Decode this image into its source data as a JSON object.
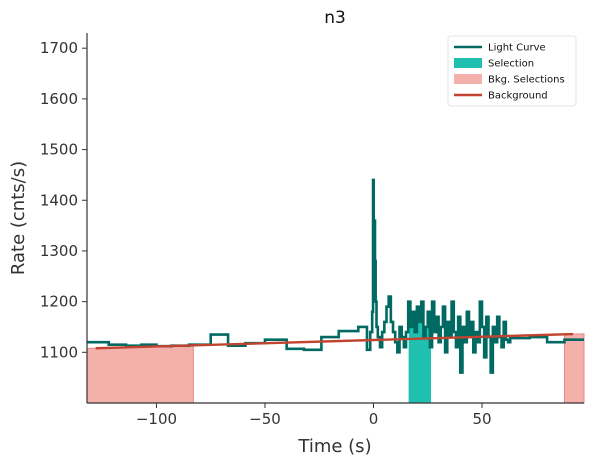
{
  "chart_data": {
    "type": "line",
    "title": "n3",
    "xlabel": "Time (s)",
    "ylabel": "Rate (cnts/s)",
    "xlim": [
      -132,
      97
    ],
    "ylim": [
      1000,
      1730
    ],
    "xticks": [
      -100,
      -50,
      0,
      50
    ],
    "xtick_labels": [
      "−100",
      "−50",
      "0",
      "50"
    ],
    "yticks": [
      1100,
      1200,
      1300,
      1400,
      1500,
      1600,
      1700
    ],
    "ytick_labels": [
      "1100",
      "1200",
      "1300",
      "1400",
      "1500",
      "1600",
      "1700"
    ],
    "grid": false,
    "legend_position": "top-right",
    "legend": [
      {
        "label": "Light Curve",
        "kind": "line",
        "color": "#006a62"
      },
      {
        "label": "Selection",
        "kind": "patch",
        "color": "#20c0b0"
      },
      {
        "label": "Bkg. Selections",
        "kind": "patch",
        "color": "#f4b1ab"
      },
      {
        "label": "Background",
        "kind": "line",
        "color": "#c2432f"
      }
    ],
    "light_curve": {
      "name": "Light Curve",
      "color": "#006a62",
      "x": [
        -132,
        -122,
        -114,
        -107,
        -100,
        -93,
        -85,
        -75,
        -67,
        -59,
        -50,
        -40,
        -32,
        -24,
        -16,
        -7,
        -3,
        -1.5,
        -0.6,
        -0.2,
        0.1,
        0.4,
        0.7,
        1.0,
        1.4,
        2,
        3,
        4,
        5,
        6,
        7,
        8,
        9,
        10,
        11,
        12,
        13,
        14,
        15,
        16,
        17,
        18,
        19,
        20,
        21,
        22,
        23,
        24,
        25,
        26,
        27,
        28,
        29,
        30,
        31,
        32,
        33,
        34,
        35,
        36,
        37,
        38,
        39,
        40,
        41,
        42,
        43,
        44,
        45,
        46,
        47,
        48,
        49,
        50,
        51,
        52,
        53,
        54,
        55,
        56,
        57,
        58,
        59,
        60,
        61,
        62,
        63,
        72,
        80,
        88,
        97
      ],
      "y": [
        1120,
        1115,
        1113,
        1115,
        1112,
        1113,
        1115,
        1135,
        1113,
        1118,
        1125,
        1107,
        1105,
        1130,
        1142,
        1150,
        1105,
        1140,
        1180,
        1440,
        1200,
        1360,
        1280,
        1200,
        1150,
        1130,
        1110,
        1140,
        1160,
        1190,
        1210,
        1160,
        1140,
        1120,
        1100,
        1150,
        1130,
        1110,
        1140,
        1200,
        1150,
        1180,
        1140,
        1190,
        1160,
        1200,
        1130,
        1150,
        1180,
        1110,
        1200,
        1140,
        1170,
        1120,
        1150,
        1190,
        1100,
        1160,
        1130,
        1200,
        1140,
        1110,
        1170,
        1060,
        1150,
        1120,
        1180,
        1130,
        1160,
        1100,
        1140,
        1120,
        1200,
        1150,
        1090,
        1170,
        1130,
        1060,
        1150,
        1120,
        1170,
        1130,
        1110,
        1160,
        1125,
        1120,
        1128,
        1130,
        1120,
        1125,
        1125
      ]
    },
    "background": {
      "name": "Background",
      "color": "#c2432f",
      "x": [
        -128,
        92
      ],
      "y": [
        1108,
        1136
      ]
    },
    "selection": {
      "name": "Selection",
      "color": "#20c0b0",
      "from": 16.2,
      "to": 26.5
    },
    "bkg_selections": [
      {
        "from": -132,
        "to": -83
      },
      {
        "from": 88,
        "to": 97
      }
    ]
  }
}
